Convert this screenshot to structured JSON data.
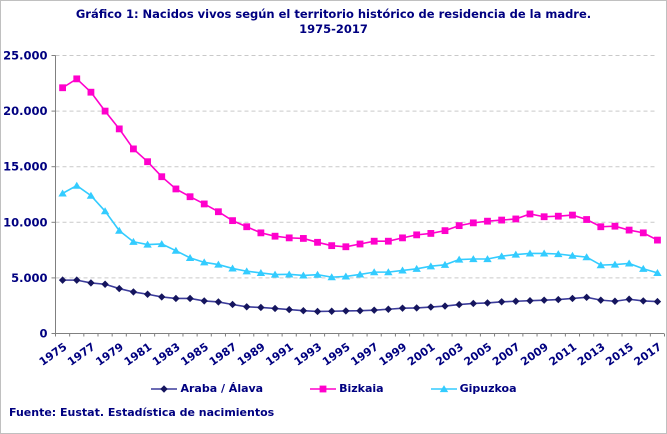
{
  "title": {
    "line1": "Gráfico 1: Nacidos vivos según el territorio histórico de residencia de la madre.",
    "line2": "1975-2017"
  },
  "source": "Fuente: Eustat. Estadística de nacimientos",
  "theme": {
    "text_color": "#000080",
    "grid_color": "#c9c9c9",
    "axis_color": "#808080",
    "frame_border_color": "#c0c0c0",
    "background": "#ffffff"
  },
  "chart_data": {
    "type": "line",
    "title": "Gráfico 1: Nacidos vivos según el territorio histórico de residencia de la madre. 1975-2017",
    "xlabel": "",
    "ylabel": "",
    "ylim": [
      0,
      25000
    ],
    "y_ticks": [
      0,
      5000,
      10000,
      15000,
      20000,
      25000
    ],
    "y_tick_labels": [
      "0",
      "5.000",
      "10.000",
      "15.000",
      "20.000",
      "25.000"
    ],
    "x": [
      1975,
      1976,
      1977,
      1978,
      1979,
      1980,
      1981,
      1982,
      1983,
      1984,
      1985,
      1986,
      1987,
      1988,
      1989,
      1990,
      1991,
      1992,
      1993,
      1994,
      1995,
      1996,
      1997,
      1998,
      1999,
      2000,
      2001,
      2002,
      2003,
      2004,
      2005,
      2006,
      2007,
      2008,
      2009,
      2010,
      2011,
      2012,
      2013,
      2014,
      2015,
      2016,
      2017
    ],
    "x_tick_labels": [
      "1975",
      "1977",
      "1979",
      "1981",
      "1983",
      "1985",
      "1987",
      "1989",
      "1991",
      "1993",
      "1995",
      "1997",
      "1999",
      "2001",
      "2003",
      "2005",
      "2007",
      "2009",
      "2011",
      "2013",
      "2015",
      "2017"
    ],
    "grid": "horizontal-dashed",
    "legend_position": "bottom",
    "series": [
      {
        "name": "Araba / Álava",
        "marker": "diamond",
        "color": "#3c3c9b",
        "marker_color": "#15155e",
        "values": [
          4800,
          4800,
          4550,
          4430,
          4040,
          3740,
          3530,
          3290,
          3150,
          3150,
          2930,
          2840,
          2610,
          2400,
          2340,
          2250,
          2150,
          2050,
          1980,
          2000,
          2030,
          2050,
          2100,
          2180,
          2280,
          2300,
          2380,
          2470,
          2600,
          2700,
          2750,
          2850,
          2900,
          2950,
          3000,
          3050,
          3150,
          3250,
          3000,
          2900,
          3080,
          2930,
          2870
        ]
      },
      {
        "name": "Bizkaia",
        "marker": "square",
        "color": "#ff00cc",
        "marker_color": "#ff00cc",
        "values": [
          22100,
          22900,
          21700,
          20000,
          18400,
          16600,
          15450,
          14100,
          13000,
          12300,
          11650,
          10950,
          10150,
          9600,
          9050,
          8750,
          8600,
          8550,
          8200,
          7900,
          7800,
          8050,
          8300,
          8300,
          8600,
          8870,
          9000,
          9250,
          9700,
          9950,
          10100,
          10200,
          10300,
          10750,
          10500,
          10550,
          10650,
          10250,
          9600,
          9650,
          9300,
          9050,
          8400
        ]
      },
      {
        "name": "Gipuzkoa",
        "marker": "triangle",
        "color": "#33ccff",
        "marker_color": "#33ccff",
        "values": [
          12600,
          13300,
          12400,
          11000,
          9250,
          8250,
          8000,
          8050,
          7450,
          6800,
          6400,
          6200,
          5850,
          5600,
          5450,
          5300,
          5320,
          5220,
          5290,
          5070,
          5130,
          5310,
          5520,
          5520,
          5670,
          5820,
          6050,
          6180,
          6650,
          6700,
          6700,
          6950,
          7100,
          7200,
          7200,
          7150,
          7000,
          6870,
          6150,
          6200,
          6300,
          5820,
          5450
        ]
      }
    ]
  }
}
